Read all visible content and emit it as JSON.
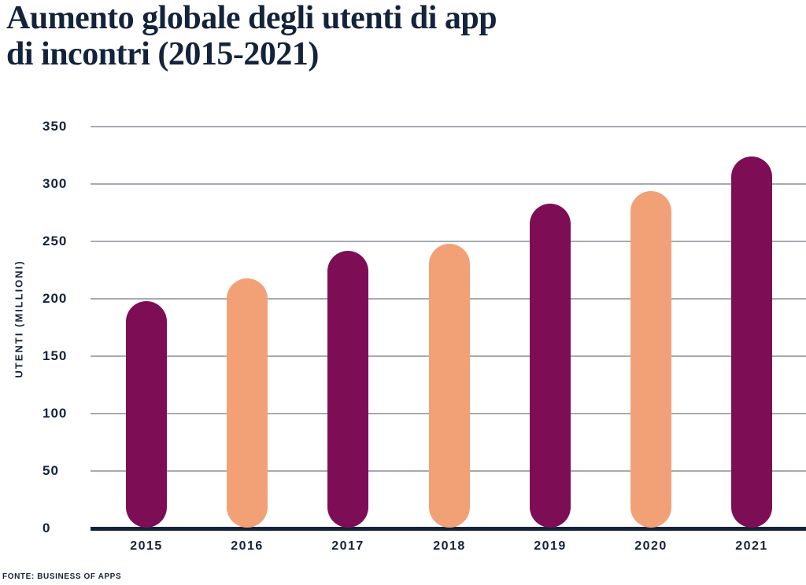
{
  "title_lines": [
    "Aumento globale degli utenti di app",
    "di incontri (2015-2021)"
  ],
  "source": "FONTE: BUSINESS OF APPS",
  "colors": {
    "navy": "#13233B",
    "magenta": "#7D0E56",
    "orange": "#F2A177",
    "gridline": "#A5ABB2"
  },
  "chart_data": {
    "type": "bar",
    "title": "Aumento globale degli utenti di app di incontri (2015-2021)",
    "categories": [
      "2015",
      "2016",
      "2017",
      "2018",
      "2019",
      "2020",
      "2021"
    ],
    "values": [
      198,
      218,
      242,
      248,
      283,
      294,
      324
    ],
    "bar_colors": [
      "#7D0E56",
      "#F2A177",
      "#7D0E56",
      "#F2A177",
      "#7D0E56",
      "#F2A177",
      "#7D0E56"
    ],
    "xlabel": "",
    "ylabel": "UTENTI (MILLIONI)",
    "ylim": [
      0,
      350
    ],
    "ytick_step": 50,
    "grid": true,
    "legend": false,
    "bar_shape": "pill-rounded-both-ends",
    "units": "millions of users"
  }
}
